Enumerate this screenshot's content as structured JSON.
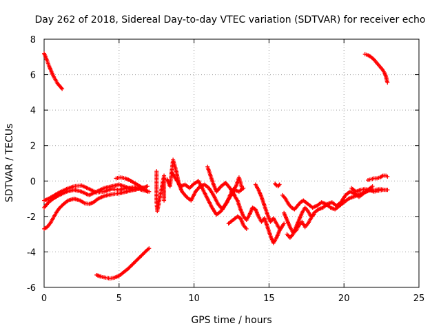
{
  "chart_data": {
    "type": "scatter",
    "title": "Day 262 of 2018, Sidereal Day-to-day VTEC variation (SDTVAR) for receiver echo",
    "xlabel": "GPS time / hours",
    "ylabel": "SDTVAR / TECUs",
    "xlim": [
      0,
      25
    ],
    "ylim": [
      -6,
      8
    ],
    "xticks": [
      0,
      5,
      10,
      15,
      20,
      25
    ],
    "yticks": [
      -6,
      -4,
      -2,
      0,
      2,
      4,
      6,
      8
    ],
    "xtick_labels": [
      "0",
      "5",
      "10",
      "15",
      "20",
      "25"
    ],
    "ytick_labels": [
      "-6",
      "-4",
      "-2",
      "0",
      "2",
      "4",
      "6",
      "8"
    ],
    "grid": true,
    "legend": "none",
    "marker": "plus",
    "color": "#ff0000",
    "series": [
      {
        "name": "arc-high-start",
        "points": [
          [
            0.0,
            7.2
          ],
          [
            0.1,
            7.0
          ],
          [
            0.2,
            6.8
          ],
          [
            0.3,
            6.55
          ],
          [
            0.4,
            6.35
          ],
          [
            0.5,
            6.15
          ],
          [
            0.6,
            5.95
          ],
          [
            0.7,
            5.8
          ],
          [
            0.8,
            5.65
          ],
          [
            0.9,
            5.5
          ],
          [
            1.0,
            5.4
          ],
          [
            1.1,
            5.3
          ],
          [
            1.2,
            5.2
          ]
        ]
      },
      {
        "name": "arc-high-end",
        "points": [
          [
            21.4,
            7.15
          ],
          [
            21.6,
            7.1
          ],
          [
            21.8,
            7.0
          ],
          [
            22.0,
            6.85
          ],
          [
            22.2,
            6.65
          ],
          [
            22.4,
            6.45
          ],
          [
            22.6,
            6.25
          ],
          [
            22.7,
            6.1
          ],
          [
            22.8,
            5.9
          ],
          [
            22.85,
            5.7
          ],
          [
            22.9,
            5.55
          ]
        ]
      },
      {
        "name": "arc-low",
        "points": [
          [
            3.5,
            -5.3
          ],
          [
            3.8,
            -5.4
          ],
          [
            4.1,
            -5.45
          ],
          [
            4.4,
            -5.5
          ],
          [
            4.7,
            -5.45
          ],
          [
            5.0,
            -5.35
          ],
          [
            5.3,
            -5.15
          ],
          [
            5.6,
            -4.95
          ],
          [
            5.9,
            -4.7
          ],
          [
            6.2,
            -4.45
          ],
          [
            6.5,
            -4.2
          ],
          [
            6.8,
            -3.95
          ],
          [
            7.0,
            -3.8
          ]
        ]
      },
      {
        "name": "arc-a",
        "points": [
          [
            0.0,
            -2.7
          ],
          [
            0.2,
            -2.6
          ],
          [
            0.4,
            -2.4
          ],
          [
            0.6,
            -2.1
          ],
          [
            0.8,
            -1.8
          ],
          [
            1.0,
            -1.55
          ],
          [
            1.3,
            -1.3
          ],
          [
            1.6,
            -1.1
          ],
          [
            2.0,
            -1.0
          ],
          [
            2.4,
            -1.1
          ],
          [
            2.7,
            -1.25
          ],
          [
            3.0,
            -1.3
          ],
          [
            3.3,
            -1.2
          ],
          [
            3.6,
            -1.0
          ],
          [
            4.0,
            -0.85
          ],
          [
            4.5,
            -0.75
          ],
          [
            5.0,
            -0.7
          ],
          [
            5.5,
            -0.6
          ],
          [
            6.0,
            -0.5
          ],
          [
            6.5,
            -0.4
          ],
          [
            6.9,
            -0.3
          ]
        ]
      },
      {
        "name": "arc-b",
        "points": [
          [
            0.0,
            -1.1
          ],
          [
            0.3,
            -1.0
          ],
          [
            0.6,
            -0.85
          ],
          [
            1.0,
            -0.65
          ],
          [
            1.5,
            -0.45
          ],
          [
            2.0,
            -0.3
          ],
          [
            2.5,
            -0.25
          ],
          [
            3.0,
            -0.45
          ],
          [
            3.5,
            -0.65
          ],
          [
            4.0,
            -0.6
          ],
          [
            4.5,
            -0.45
          ],
          [
            5.0,
            -0.5
          ],
          [
            5.5,
            -0.4
          ],
          [
            6.0,
            -0.35
          ],
          [
            6.5,
            -0.5
          ],
          [
            7.0,
            -0.6
          ]
        ]
      },
      {
        "name": "arc-c",
        "points": [
          [
            0.0,
            -1.5
          ],
          [
            0.3,
            -1.2
          ],
          [
            0.6,
            -1.0
          ],
          [
            1.0,
            -0.8
          ],
          [
            1.5,
            -0.6
          ],
          [
            2.0,
            -0.5
          ],
          [
            2.5,
            -0.6
          ],
          [
            3.0,
            -0.8
          ],
          [
            3.5,
            -0.6
          ],
          [
            4.0,
            -0.4
          ],
          [
            4.5,
            -0.3
          ],
          [
            5.0,
            -0.2
          ],
          [
            5.5,
            -0.35
          ],
          [
            6.0,
            -0.5
          ],
          [
            6.5,
            -0.4
          ]
        ]
      },
      {
        "name": "arc-d",
        "points": [
          [
            4.8,
            0.15
          ],
          [
            5.1,
            0.2
          ],
          [
            5.4,
            0.15
          ],
          [
            5.7,
            0.05
          ],
          [
            6.0,
            -0.1
          ],
          [
            6.3,
            -0.25
          ],
          [
            6.6,
            -0.4
          ],
          [
            6.9,
            -0.6
          ]
        ]
      },
      {
        "name": "arc-e",
        "points": [
          [
            7.5,
            0.55
          ],
          [
            7.5,
            0.0
          ],
          [
            7.5,
            -0.6
          ],
          [
            7.5,
            -1.2
          ],
          [
            7.55,
            -1.7
          ],
          [
            8.0,
            0.3
          ],
          [
            8.0,
            -0.5
          ],
          [
            8.0,
            -1.1
          ]
        ]
      },
      {
        "name": "arc-f",
        "points": [
          [
            8.2,
            0.1
          ],
          [
            8.4,
            -0.3
          ],
          [
            8.6,
            1.2
          ],
          [
            8.8,
            0.6
          ],
          [
            9.0,
            -0.2
          ],
          [
            9.2,
            -0.6
          ],
          [
            9.5,
            -0.9
          ],
          [
            9.8,
            -1.1
          ],
          [
            10.1,
            -0.6
          ],
          [
            10.4,
            -0.3
          ],
          [
            10.7,
            -0.2
          ],
          [
            11.0,
            -0.4
          ],
          [
            11.3,
            -0.8
          ],
          [
            11.6,
            -1.3
          ],
          [
            11.9,
            -1.6
          ],
          [
            12.2,
            -1.2
          ],
          [
            12.5,
            -0.6
          ],
          [
            12.8,
            -0.3
          ],
          [
            13.0,
            0.2
          ],
          [
            13.2,
            -0.4
          ]
        ]
      },
      {
        "name": "arc-g",
        "points": [
          [
            8.5,
            0.5
          ],
          [
            8.8,
            0.1
          ],
          [
            9.1,
            -0.3
          ],
          [
            9.4,
            -0.2
          ],
          [
            9.7,
            -0.4
          ],
          [
            10.0,
            -0.15
          ],
          [
            10.3,
            0.0
          ],
          [
            10.6,
            -0.5
          ],
          [
            10.9,
            -1.0
          ],
          [
            11.2,
            -1.5
          ],
          [
            11.5,
            -1.9
          ],
          [
            11.8,
            -1.7
          ],
          [
            12.1,
            -1.3
          ],
          [
            12.4,
            -0.9
          ],
          [
            12.7,
            -0.5
          ],
          [
            13.0,
            -0.6
          ],
          [
            13.3,
            -0.4
          ]
        ]
      },
      {
        "name": "arc-h",
        "points": [
          [
            10.9,
            0.8
          ],
          [
            11.1,
            0.3
          ],
          [
            11.3,
            -0.2
          ],
          [
            11.5,
            -0.6
          ],
          [
            11.8,
            -0.3
          ],
          [
            12.1,
            -0.1
          ],
          [
            12.4,
            -0.4
          ],
          [
            12.7,
            -0.8
          ]
        ]
      },
      {
        "name": "arc-i",
        "points": [
          [
            12.6,
            -0.7
          ],
          [
            12.9,
            -1.1
          ],
          [
            13.1,
            -1.6
          ],
          [
            13.3,
            -2.0
          ],
          [
            13.5,
            -2.2
          ],
          [
            13.7,
            -1.9
          ],
          [
            13.9,
            -1.5
          ],
          [
            14.1,
            -1.6
          ],
          [
            14.3,
            -2.0
          ],
          [
            14.5,
            -2.3
          ],
          [
            14.7,
            -2.1
          ],
          [
            14.9,
            -2.6
          ],
          [
            15.1,
            -3.1
          ],
          [
            15.3,
            -3.5
          ],
          [
            15.5,
            -3.2
          ],
          [
            15.7,
            -2.8
          ],
          [
            16.0,
            -2.4
          ]
        ]
      },
      {
        "name": "arc-j",
        "points": [
          [
            12.3,
            -2.4
          ],
          [
            12.6,
            -2.2
          ],
          [
            12.9,
            -2.0
          ],
          [
            13.1,
            -2.1
          ],
          [
            13.3,
            -2.5
          ],
          [
            13.5,
            -2.7
          ]
        ]
      },
      {
        "name": "arc-k",
        "points": [
          [
            14.1,
            -0.2
          ],
          [
            14.3,
            -0.5
          ],
          [
            14.5,
            -0.9
          ],
          [
            14.7,
            -1.4
          ],
          [
            14.9,
            -1.9
          ],
          [
            15.1,
            -2.3
          ],
          [
            15.3,
            -2.1
          ],
          [
            15.5,
            -2.4
          ],
          [
            15.7,
            -2.7
          ]
        ]
      },
      {
        "name": "arc-l",
        "points": [
          [
            15.4,
            -0.15
          ],
          [
            15.5,
            -0.25
          ],
          [
            15.6,
            -0.3
          ],
          [
            15.7,
            -0.2
          ]
        ]
      },
      {
        "name": "arc-m",
        "points": [
          [
            15.9,
            -0.8
          ],
          [
            16.1,
            -1.0
          ],
          [
            16.3,
            -1.3
          ],
          [
            16.5,
            -1.5
          ],
          [
            16.7,
            -1.6
          ],
          [
            16.9,
            -1.4
          ],
          [
            17.1,
            -1.2
          ],
          [
            17.3,
            -1.1
          ],
          [
            17.6,
            -1.3
          ],
          [
            17.9,
            -1.5
          ],
          [
            18.2,
            -1.4
          ],
          [
            18.5,
            -1.2
          ],
          [
            18.8,
            -1.3
          ],
          [
            19.1,
            -1.5
          ],
          [
            19.4,
            -1.6
          ],
          [
            19.7,
            -1.4
          ],
          [
            20.0,
            -1.2
          ],
          [
            20.3,
            -1.0
          ],
          [
            20.6,
            -0.9
          ],
          [
            20.9,
            -0.8
          ],
          [
            21.2,
            -0.7
          ],
          [
            21.5,
            -0.6
          ],
          [
            21.8,
            -0.5
          ],
          [
            22.1,
            -0.5
          ],
          [
            22.4,
            -0.45
          ],
          [
            22.7,
            -0.5
          ],
          [
            22.9,
            -0.5
          ]
        ]
      },
      {
        "name": "arc-n",
        "points": [
          [
            16.0,
            -1.8
          ],
          [
            16.2,
            -2.2
          ],
          [
            16.4,
            -2.6
          ],
          [
            16.6,
            -2.9
          ],
          [
            16.8,
            -2.8
          ],
          [
            17.0,
            -2.5
          ],
          [
            17.2,
            -2.3
          ],
          [
            17.4,
            -2.6
          ],
          [
            17.6,
            -2.4
          ],
          [
            17.8,
            -2.1
          ],
          [
            18.0,
            -1.8
          ],
          [
            18.3,
            -1.6
          ],
          [
            18.6,
            -1.5
          ],
          [
            18.9,
            -1.3
          ],
          [
            19.2,
            -1.2
          ],
          [
            19.5,
            -1.4
          ],
          [
            19.8,
            -1.2
          ],
          [
            20.1,
            -0.8
          ],
          [
            20.4,
            -0.6
          ],
          [
            20.7,
            -0.7
          ],
          [
            21.0,
            -0.9
          ],
          [
            21.3,
            -0.7
          ],
          [
            21.6,
            -0.5
          ],
          [
            21.9,
            -0.3
          ]
        ]
      },
      {
        "name": "arc-o",
        "points": [
          [
            20.5,
            -0.4
          ],
          [
            20.8,
            -0.6
          ],
          [
            21.1,
            -0.5
          ],
          [
            21.4,
            -0.45
          ],
          [
            21.7,
            -0.5
          ],
          [
            22.0,
            -0.6
          ],
          [
            22.3,
            -0.55
          ],
          [
            22.6,
            -0.5
          ],
          [
            22.9,
            -0.5
          ]
        ]
      },
      {
        "name": "arc-p",
        "points": [
          [
            21.6,
            0.05
          ],
          [
            21.8,
            0.1
          ],
          [
            22.0,
            0.15
          ],
          [
            22.2,
            0.15
          ],
          [
            22.4,
            0.2
          ],
          [
            22.6,
            0.3
          ],
          [
            22.8,
            0.3
          ],
          [
            22.9,
            0.25
          ]
        ]
      },
      {
        "name": "arc-q",
        "points": [
          [
            16.2,
            -3.0
          ],
          [
            16.4,
            -3.2
          ],
          [
            16.6,
            -3.0
          ],
          [
            16.8,
            -2.6
          ],
          [
            17.0,
            -2.2
          ],
          [
            17.2,
            -1.8
          ],
          [
            17.4,
            -1.5
          ],
          [
            17.6,
            -1.7
          ],
          [
            17.8,
            -2.0
          ],
          [
            18.0,
            -1.9
          ]
        ]
      }
    ]
  }
}
